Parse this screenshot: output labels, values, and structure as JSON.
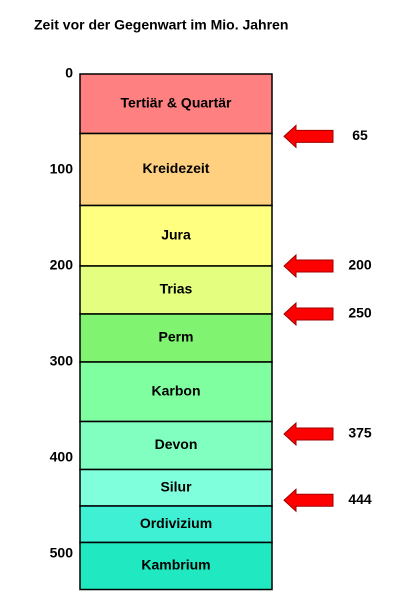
{
  "title": "Zeit vor der Gegenwart im Mio. Jahren",
  "scale": {
    "ylim": [
      0,
      500
    ],
    "ticks": [
      0,
      100,
      200,
      300,
      400,
      500
    ]
  },
  "periods": [
    {
      "name": "Tertiär & Quartär",
      "start": 0,
      "end": 62,
      "color": "#ff8080"
    },
    {
      "name": "Kreidezeit",
      "start": 62,
      "end": 137,
      "color": "#ffd080"
    },
    {
      "name": "Jura",
      "start": 137,
      "end": 200,
      "color": "#ffff80"
    },
    {
      "name": "Trias",
      "start": 200,
      "end": 250,
      "color": "#e4ff80"
    },
    {
      "name": "Perm",
      "start": 250,
      "end": 300,
      "color": "#80f470"
    },
    {
      "name": "Karbon",
      "start": 300,
      "end": 362,
      "color": "#80ffa0"
    },
    {
      "name": "Devon",
      "start": 362,
      "end": 412,
      "color": "#80ffc0"
    },
    {
      "name": "Silur",
      "start": 412,
      "end": 450,
      "color": "#80ffdc"
    },
    {
      "name": "Ordivizium",
      "start": 450,
      "end": 488,
      "color": "#40f0d4"
    },
    {
      "name": "Kambrium",
      "start": 488,
      "end": 537,
      "color": "#20e8c0"
    }
  ],
  "arrows": [
    65,
    200,
    250,
    375,
    444
  ],
  "arrow_color": "#ff0000"
}
